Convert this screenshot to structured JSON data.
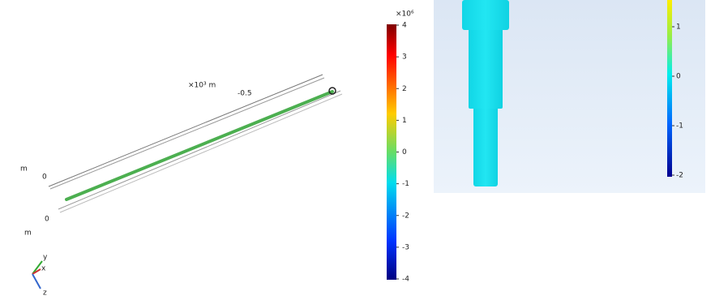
{
  "left_plot": {
    "axis_scale_label": "×10³ m",
    "axis_value_label": "-0.5",
    "unit_label_top": "m",
    "zero_label_top": "0",
    "zero_label_bottom": "0",
    "unit_label_bottom": "m",
    "triad": {
      "y": "y",
      "x": "x",
      "z": "z"
    },
    "colorbar": {
      "scale_label": "×10⁶",
      "ticks": [
        "4",
        "3",
        "2",
        "1",
        "0",
        "-1",
        "-2",
        "-3",
        "-4"
      ]
    }
  },
  "right_plot": {
    "colorbar": {
      "ticks": [
        "1",
        "0",
        "-1",
        "-2"
      ]
    }
  }
}
